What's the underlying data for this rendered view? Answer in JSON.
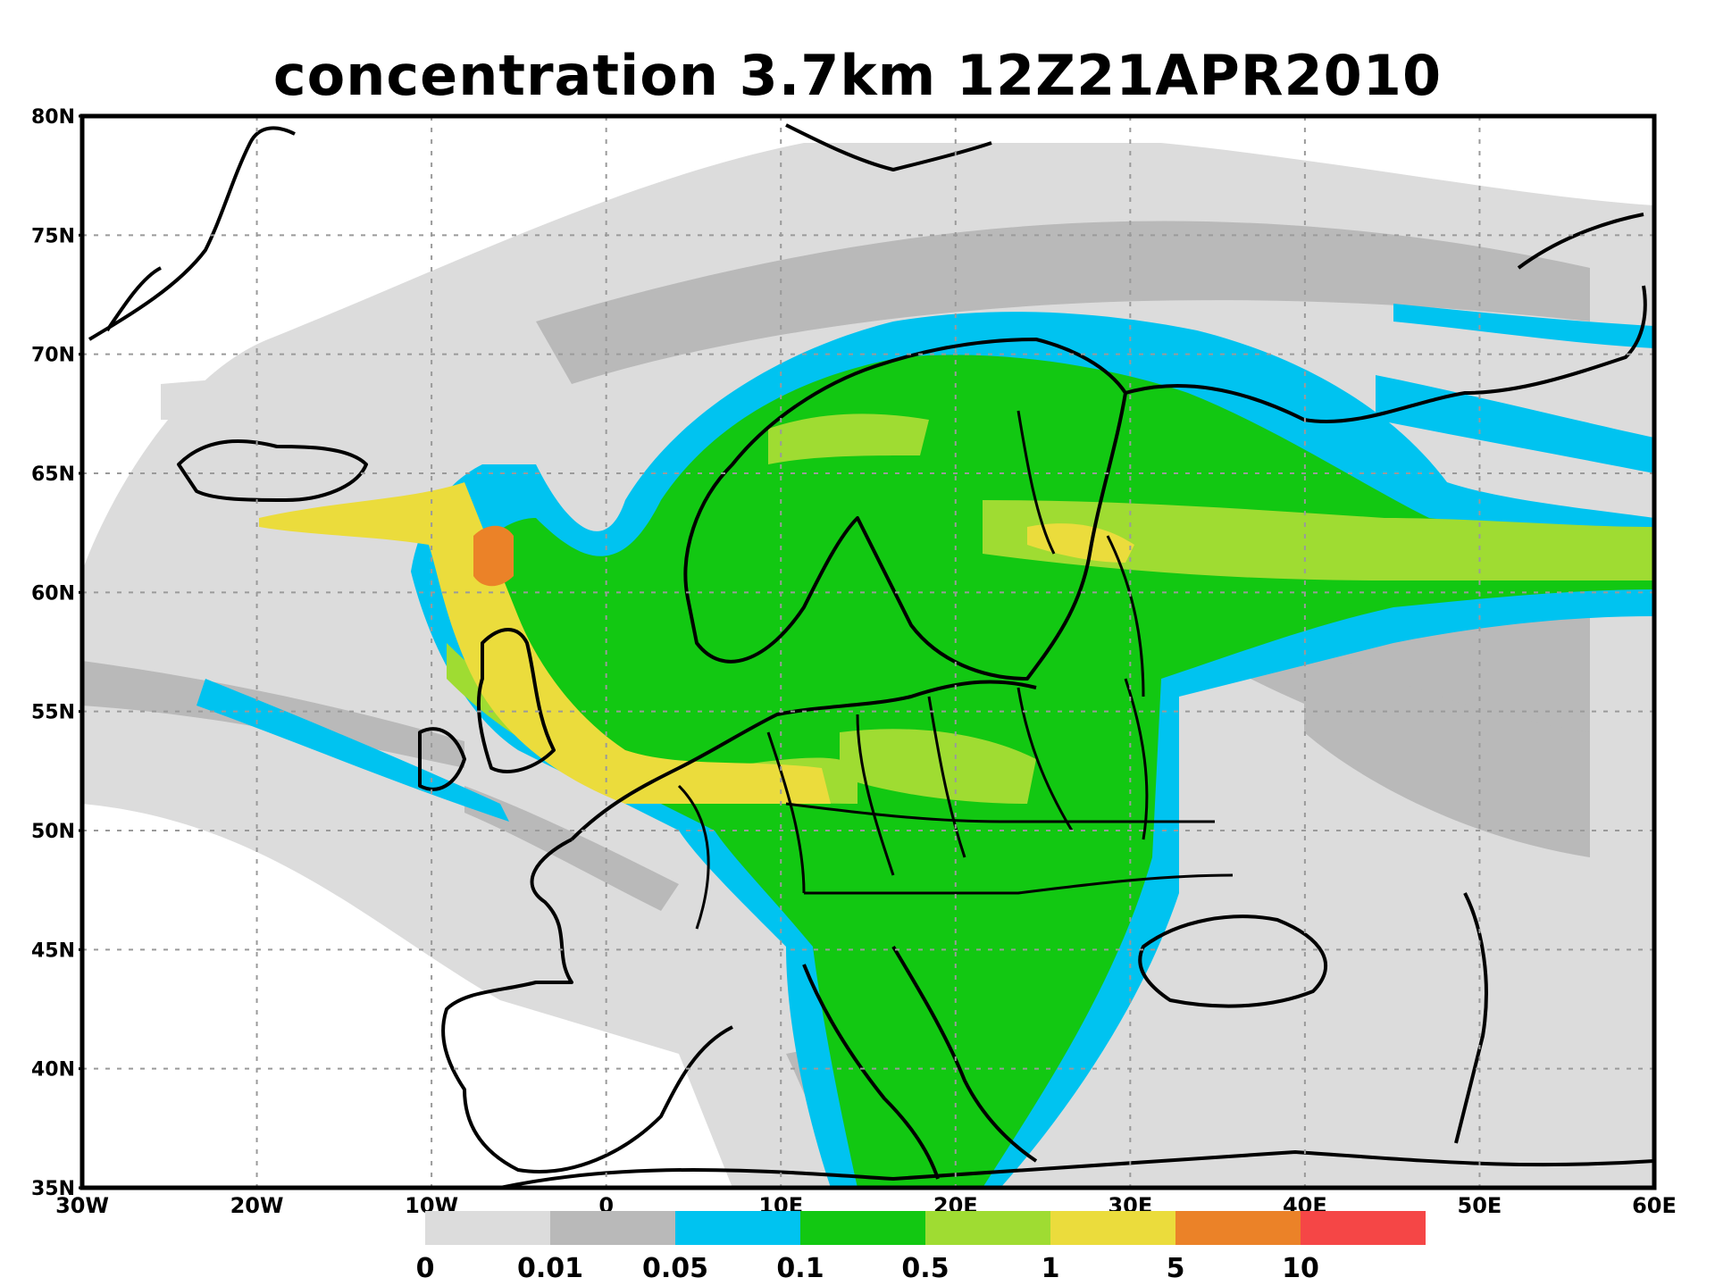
{
  "title": "concentration  3.7km  12Z21APR2010",
  "lat_labels": [
    "80N",
    "75N",
    "70N",
    "65N",
    "60N",
    "55N",
    "50N",
    "45N",
    "40N",
    "35N"
  ],
  "lon_labels": [
    "30W",
    "20W",
    "10W",
    "0",
    "10E",
    "20E",
    "30E",
    "40E",
    "50E",
    "60E"
  ],
  "legend": {
    "levels": [
      "0",
      "0.01",
      "0.05",
      "0.1",
      "0.5",
      "1",
      "5",
      "10"
    ],
    "colors": [
      "#dcdcdc",
      "#b9b9b9",
      "#00c3f0",
      "#12c812",
      "#9fdc32",
      "#ebdc3c",
      "#eb8228",
      "#f54646"
    ]
  }
}
